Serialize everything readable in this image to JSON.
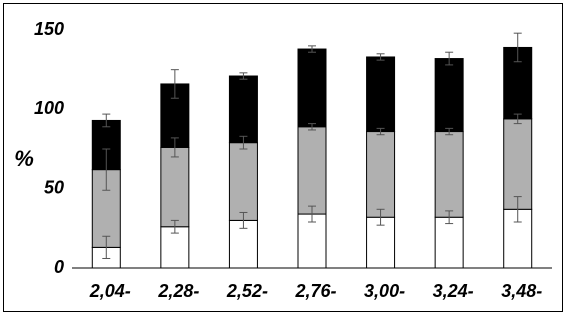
{
  "chart_data": {
    "type": "stacked_bar",
    "y_label": "%",
    "categories": [
      "2,04-",
      "2,28-",
      "2,52-",
      "2,76-",
      "3,00-",
      "3,24-",
      "3,48-"
    ],
    "series": [
      {
        "color": "#ffffff",
        "values": [
          13,
          26,
          30,
          34,
          32,
          32,
          37
        ],
        "errors": [
          7,
          4,
          5,
          5,
          5,
          4,
          8
        ]
      },
      {
        "color": "#b0b0b0",
        "values": [
          49,
          50,
          49,
          55,
          54,
          54,
          57
        ],
        "errors": [
          13,
          6,
          4,
          2,
          2,
          2,
          3
        ]
      },
      {
        "color": "#000000",
        "values": [
          31,
          40,
          42,
          49,
          47,
          46,
          45
        ],
        "errors": [
          4,
          9,
          2,
          2,
          2,
          4,
          9
        ]
      }
    ],
    "ylim": [
      0,
      150
    ],
    "yticks": [
      0,
      50,
      100,
      150
    ]
  }
}
